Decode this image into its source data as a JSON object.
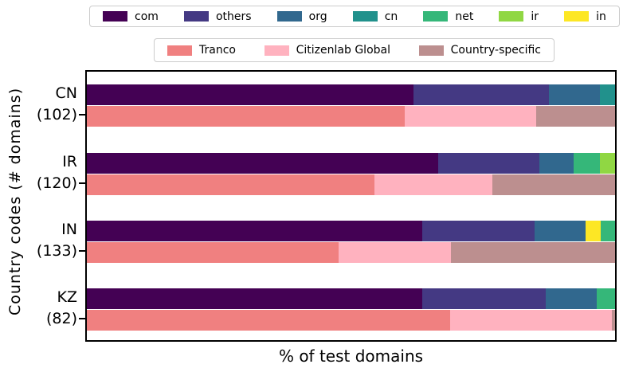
{
  "axes": {
    "xlabel": "% of test domains",
    "ylabel": "Country codes (# domains)"
  },
  "series_colors": {
    "com": "#440154",
    "others": "#443983",
    "org": "#31688e",
    "cn": "#21918c",
    "net": "#35b779",
    "ir": "#90d743",
    "in": "#fde725",
    "Tranco": "#f08080",
    "Citizenlab Global": "#ffb2bf",
    "Country-specific": "#bc8f8f"
  },
  "legend_tld": [
    "com",
    "others",
    "org",
    "cn",
    "net",
    "ir",
    "in"
  ],
  "legend_lists": [
    "Tranco",
    "Citizenlab Global",
    "Country-specific"
  ],
  "chart_data": {
    "type": "bar",
    "orientation": "horizontal",
    "stacked": true,
    "title": "",
    "xlabel": "% of test domains",
    "ylabel": "Country codes (# domains)",
    "xlim": [
      0,
      100
    ],
    "x_ticks_visible": false,
    "legend_positions": [
      "top-outside",
      "top-outside-second-row"
    ],
    "grid": false,
    "groups": [
      {
        "country": "CN",
        "num_domains": 102,
        "label_line1": "CN",
        "label_line2": "(102)",
        "tld_bar": [
          {
            "name": "com",
            "pct": 61.8
          },
          {
            "name": "others",
            "pct": 25.7
          },
          {
            "name": "org",
            "pct": 9.6
          },
          {
            "name": "cn",
            "pct": 2.9
          }
        ],
        "list_bar": [
          {
            "name": "Tranco",
            "pct": 60.2
          },
          {
            "name": "Citizenlab Global",
            "pct": 24.8
          },
          {
            "name": "Country-specific",
            "pct": 15.0
          }
        ]
      },
      {
        "country": "IR",
        "num_domains": 120,
        "label_line1": "IR",
        "label_line2": "(120)",
        "tld_bar": [
          {
            "name": "com",
            "pct": 66.5
          },
          {
            "name": "others",
            "pct": 19.2
          },
          {
            "name": "org",
            "pct": 6.5
          },
          {
            "name": "net",
            "pct": 4.9
          },
          {
            "name": "ir",
            "pct": 2.9
          }
        ],
        "list_bar": [
          {
            "name": "Tranco",
            "pct": 54.5
          },
          {
            "name": "Citizenlab Global",
            "pct": 22.2
          },
          {
            "name": "Country-specific",
            "pct": 23.3
          }
        ]
      },
      {
        "country": "IN",
        "num_domains": 133,
        "label_line1": "IN",
        "label_line2": "(133)",
        "tld_bar": [
          {
            "name": "com",
            "pct": 63.5
          },
          {
            "name": "others",
            "pct": 21.2
          },
          {
            "name": "org",
            "pct": 9.7
          },
          {
            "name": "in",
            "pct": 2.9
          },
          {
            "name": "net",
            "pct": 2.7
          }
        ],
        "list_bar": [
          {
            "name": "Tranco",
            "pct": 47.7
          },
          {
            "name": "Citizenlab Global",
            "pct": 21.2
          },
          {
            "name": "Country-specific",
            "pct": 31.1
          }
        ]
      },
      {
        "country": "KZ",
        "num_domains": 82,
        "label_line1": "KZ",
        "label_line2": "(82)",
        "tld_bar": [
          {
            "name": "com",
            "pct": 63.5
          },
          {
            "name": "others",
            "pct": 23.4
          },
          {
            "name": "org",
            "pct": 9.7
          },
          {
            "name": "net",
            "pct": 3.4
          }
        ],
        "list_bar": [
          {
            "name": "Tranco",
            "pct": 68.8
          },
          {
            "name": "Citizenlab Global",
            "pct": 30.6
          },
          {
            "name": "Country-specific",
            "pct": 0.6
          }
        ]
      }
    ]
  }
}
